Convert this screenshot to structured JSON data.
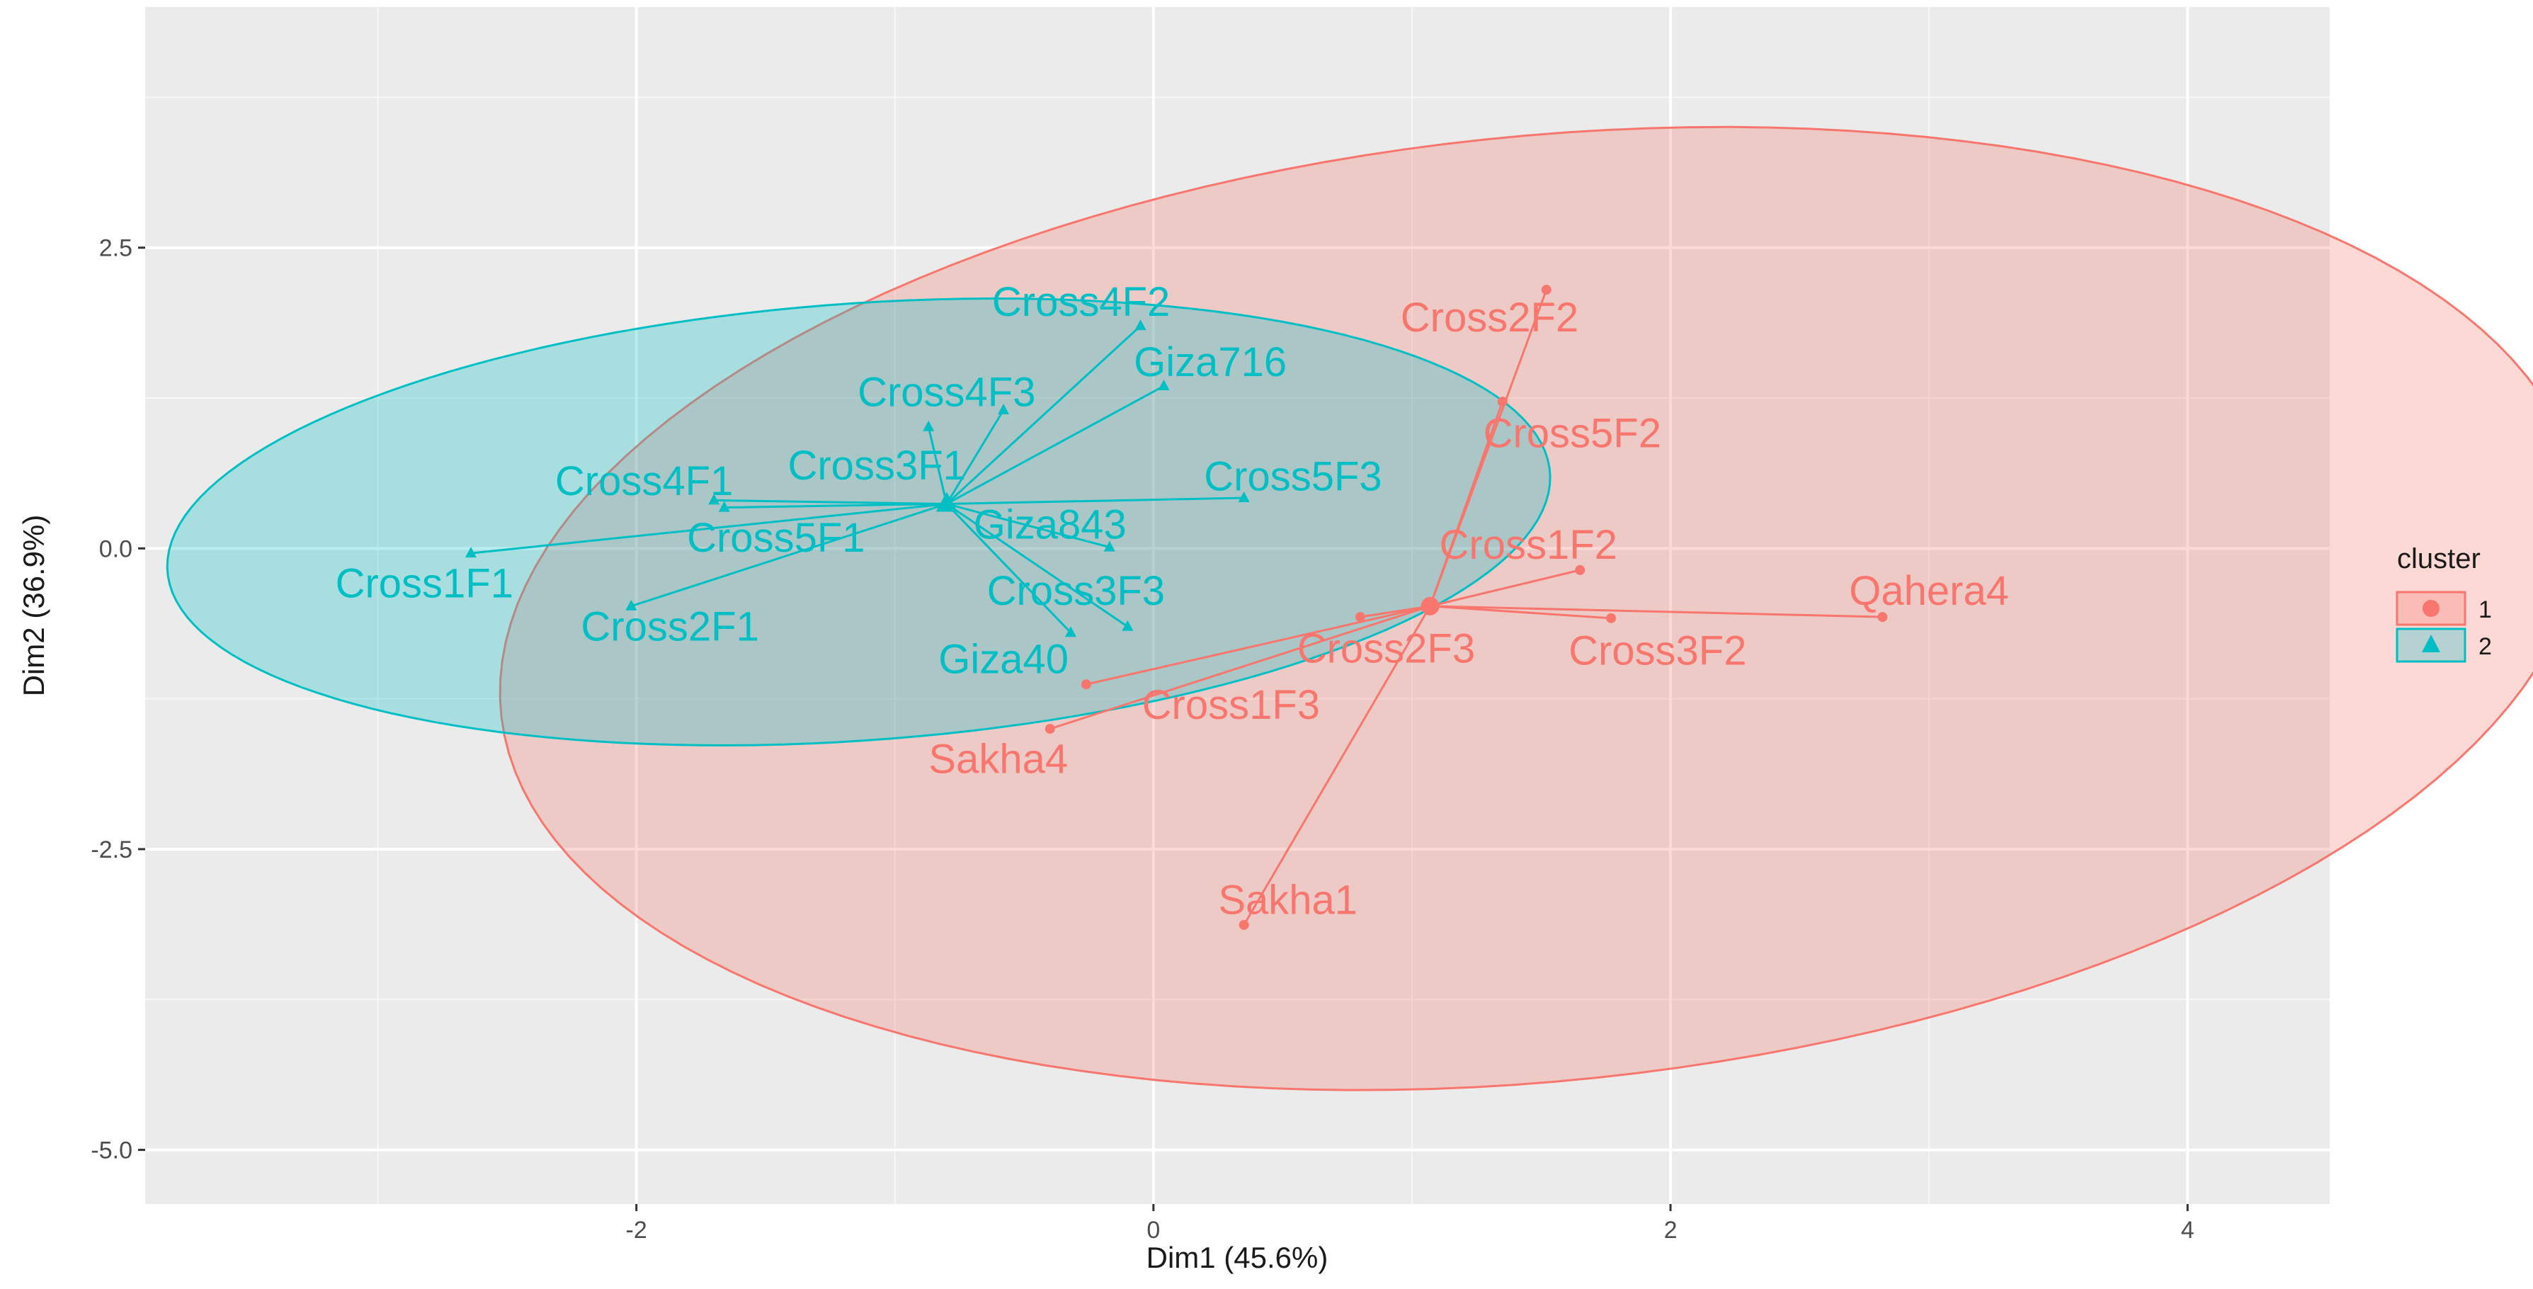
{
  "chart_data": {
    "type": "scatter",
    "subtype": "cluster-plot",
    "xlabel": "Dim1 (45.6%)",
    "ylabel": "Dim2 (36.9%)",
    "xlim": [
      -3.9,
      4.55
    ],
    "ylim": [
      -5.45,
      4.5
    ],
    "x_ticks": [
      {
        "value": -2,
        "label": "-2"
      },
      {
        "value": 0,
        "label": "0"
      },
      {
        "value": 2,
        "label": "2"
      },
      {
        "value": 4,
        "label": "4"
      }
    ],
    "y_ticks": [
      {
        "value": 2.5,
        "label": "2.5"
      },
      {
        "value": 0,
        "label": "0.0"
      },
      {
        "value": -2.5,
        "label": "-2.5"
      },
      {
        "value": -5,
        "label": "-5.0"
      }
    ],
    "grid": true,
    "legend": {
      "title": "cluster",
      "position": "right",
      "entries": [
        {
          "label": "1",
          "color": "#F8766D"
        },
        {
          "label": "2",
          "color": "#00BFC4"
        }
      ]
    },
    "clusters": [
      {
        "name": "1",
        "color": "#F8766D",
        "fill": "#F8766D",
        "center": [
          1.07,
          -0.48
        ],
        "ellipse": {
          "center": [
            1.5,
            -0.5
          ],
          "rx": 4.35,
          "ry": 3.65,
          "angle_deg": 44
        },
        "points": [
          {
            "name": "Cross2F2",
            "x": 1.52,
            "y": 2.15,
            "label_x": 1.3,
            "label_y": 1.92
          },
          {
            "name": "Cross5F2",
            "x": 1.35,
            "y": 1.22,
            "label_x": 1.62,
            "label_y": 0.96
          },
          {
            "name": "Cross1F2",
            "x": 1.65,
            "y": -0.18,
            "label_x": 1.45,
            "label_y": 0.03
          },
          {
            "name": "Qahera4",
            "x": 2.82,
            "y": -0.57,
            "label_x": 3.0,
            "label_y": -0.35
          },
          {
            "name": "Cross3F2",
            "x": 1.77,
            "y": -0.58,
            "label_x": 1.95,
            "label_y": -0.85
          },
          {
            "name": "Cross2F3",
            "x": 0.8,
            "y": -0.57,
            "label_x": 0.9,
            "label_y": -0.83
          },
          {
            "name": "Cross1F3",
            "x": -0.26,
            "y": -1.13,
            "label_x": 0.3,
            "label_y": -1.3
          },
          {
            "name": "Sakha4",
            "x": -0.4,
            "y": -1.5,
            "label_x": -0.6,
            "label_y": -1.75
          },
          {
            "name": "Sakha1",
            "x": 0.35,
            "y": -3.13,
            "label_x": 0.52,
            "label_y": -2.92
          }
        ]
      },
      {
        "name": "2",
        "color": "#00BFC4",
        "fill": "#00BFC4",
        "center": [
          -0.8,
          0.37
        ],
        "ellipse": {
          "center": [
            -1.14,
            0.22
          ],
          "rx": 2.72,
          "ry": 1.79,
          "angle_deg": 14
        },
        "points": [
          {
            "name": "Cross4F2",
            "x": -0.05,
            "y": 1.85,
            "label_x": -0.28,
            "label_y": 2.05
          },
          {
            "name": "Giza716",
            "x": 0.04,
            "y": 1.35,
            "label_x": 0.22,
            "label_y": 1.55
          },
          {
            "name": "Cross4F3",
            "x": -0.58,
            "y": 1.15,
            "label_x": -0.8,
            "label_y": 1.3
          },
          {
            "name": "Cross3F1",
            "x": -0.87,
            "y": 1.01,
            "label_x": -1.07,
            "label_y": 0.69
          },
          {
            "name": "Cross5F3",
            "x": 0.35,
            "y": 0.42,
            "label_x": 0.54,
            "label_y": 0.6
          },
          {
            "name": "Cross4F1",
            "x": -1.7,
            "y": 0.4,
            "label_x": -1.97,
            "label_y": 0.56
          },
          {
            "name": "Giza843",
            "x": -0.17,
            "y": 0.01,
            "label_x": -0.4,
            "label_y": 0.2
          },
          {
            "name": "Cross5F1",
            "x": -1.66,
            "y": 0.34,
            "label_x": -1.46,
            "label_y": 0.09
          },
          {
            "name": "Cross1F1",
            "x": -2.64,
            "y": -0.04,
            "label_x": -2.82,
            "label_y": -0.29
          },
          {
            "name": "Cross2F1",
            "x": -2.02,
            "y": -0.48,
            "label_x": -1.87,
            "label_y": -0.65
          },
          {
            "name": "Cross3F3",
            "x": -0.1,
            "y": -0.65,
            "label_x": -0.3,
            "label_y": -0.35
          },
          {
            "name": "Giza40",
            "x": -0.32,
            "y": -0.7,
            "label_x": -0.58,
            "label_y": -0.92
          }
        ]
      }
    ]
  }
}
